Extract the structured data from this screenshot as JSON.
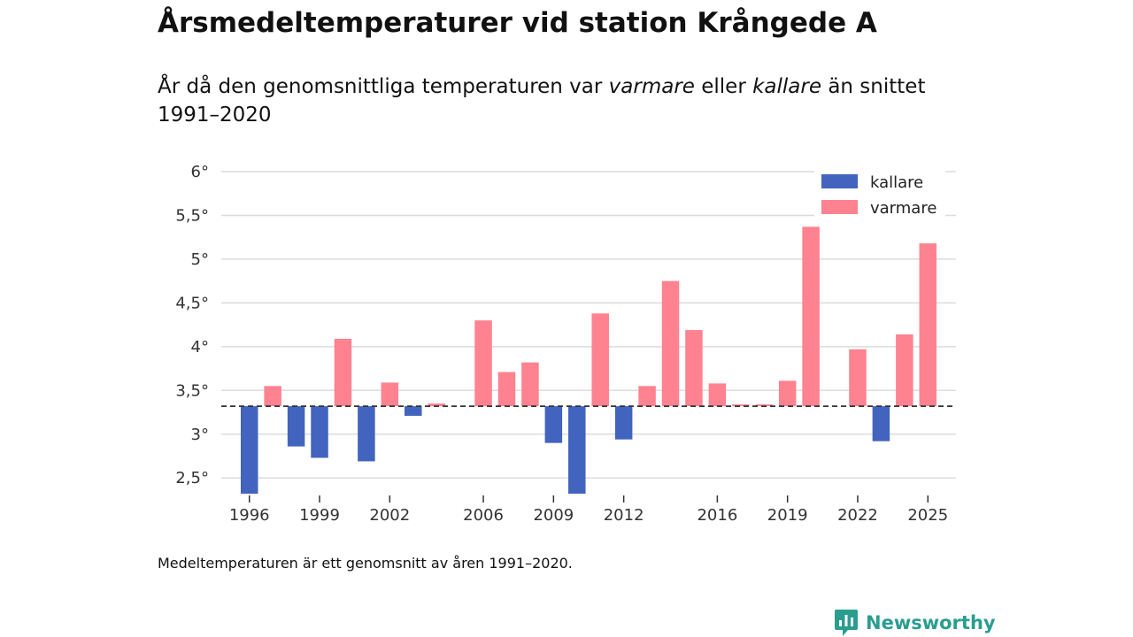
{
  "header": {
    "title": "Årsmedeltemperaturer vid station Krångede A",
    "subtitle_part1": "År då den genomsnittliga temperaturen var ",
    "subtitle_warm": "varmare",
    "subtitle_part2": " eller ",
    "subtitle_cold": "kallare",
    "subtitle_part3": " än snittet 1991–2020"
  },
  "footer": {
    "note": "Medeltemperaturen är ett genomsnitt av åren 1991–2020.",
    "brand": "Newsworthy"
  },
  "colors": {
    "kallare": "#4264be",
    "varmare": "#ff8290",
    "brand": "#2a9d8f"
  },
  "chart_data": {
    "type": "bar",
    "title": "Årsmedeltemperaturer vid station Krångede A",
    "baseline": 3.32,
    "ylim": [
      2.3,
      6.0
    ],
    "yticks": [
      2.5,
      3,
      3.5,
      4,
      4.5,
      5,
      5.5,
      6
    ],
    "ytick_labels": [
      "2,5°",
      "3°",
      "3,5°",
      "4°",
      "4,5°",
      "5°",
      "5,5°",
      "6°"
    ],
    "xlim": [
      1994.8,
      2026.2
    ],
    "xticks": [
      1996,
      1999,
      2002,
      2006,
      2009,
      2012,
      2016,
      2019,
      2022,
      2025
    ],
    "xtick_labels": [
      "1996",
      "1999",
      "2002",
      "2006",
      "2009",
      "2012",
      "2016",
      "2019",
      "2022",
      "2025"
    ],
    "legend": [
      {
        "key": "kallare",
        "label": "kallare"
      },
      {
        "key": "varmare",
        "label": "varmare"
      }
    ],
    "legend_position": "top-right",
    "grid": true,
    "x": [
      1996,
      1997,
      1998,
      1999,
      2000,
      2001,
      2002,
      2003,
      2004,
      2006,
      2007,
      2008,
      2009,
      2010,
      2011,
      2012,
      2013,
      2014,
      2015,
      2016,
      2017,
      2018,
      2019,
      2020,
      2022,
      2023,
      2024,
      2025
    ],
    "values": [
      2.32,
      3.55,
      2.86,
      2.73,
      4.09,
      2.69,
      3.59,
      3.21,
      3.35,
      4.3,
      3.71,
      3.82,
      2.9,
      2.32,
      4.38,
      2.94,
      3.55,
      4.75,
      4.19,
      3.58,
      3.34,
      3.34,
      3.61,
      5.37,
      3.97,
      2.92,
      4.14,
      5.18
    ]
  }
}
